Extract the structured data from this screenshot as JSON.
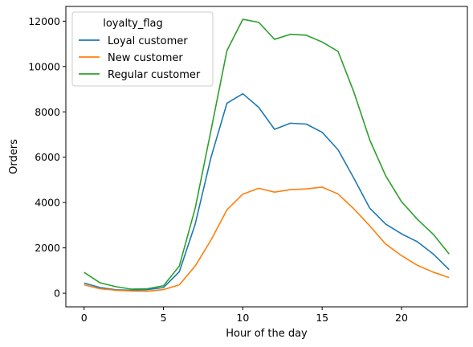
{
  "chart_data": {
    "type": "line",
    "title": "",
    "xlabel": "Hour of the day",
    "ylabel": "Orders",
    "xlim": [
      -1.15,
      24.15
    ],
    "ylim": [
      -600,
      12650
    ],
    "xticks": [
      0,
      5,
      10,
      15,
      20
    ],
    "yticks": [
      0,
      2000,
      4000,
      6000,
      8000,
      10000,
      12000
    ],
    "grid": false,
    "legend": {
      "title": "loyalty_flag",
      "placement": "top-left"
    },
    "x": [
      0,
      1,
      2,
      3,
      4,
      5,
      6,
      7,
      8,
      9,
      10,
      11,
      12,
      13,
      14,
      15,
      16,
      17,
      18,
      19,
      20,
      21,
      22,
      23
    ],
    "series": [
      {
        "name": "Loyal customer",
        "color": "#1f77b4",
        "values": [
          450,
          250,
          150,
          130,
          160,
          250,
          950,
          3050,
          6000,
          8380,
          8800,
          8200,
          7230,
          7500,
          7460,
          7100,
          6330,
          5070,
          3750,
          3050,
          2620,
          2270,
          1730,
          1040
        ]
      },
      {
        "name": "New customer",
        "color": "#ff7f0e",
        "values": [
          370,
          200,
          130,
          100,
          90,
          160,
          370,
          1200,
          2350,
          3680,
          4370,
          4630,
          4460,
          4570,
          4600,
          4680,
          4380,
          3720,
          2970,
          2170,
          1660,
          1230,
          930,
          690
        ]
      },
      {
        "name": "Regular customer",
        "color": "#2ca02c",
        "values": [
          920,
          460,
          290,
          180,
          200,
          330,
          1200,
          3750,
          7200,
          10700,
          12080,
          11950,
          11200,
          11420,
          11380,
          11080,
          10670,
          8870,
          6760,
          5180,
          4040,
          3260,
          2600,
          1730
        ]
      }
    ]
  }
}
